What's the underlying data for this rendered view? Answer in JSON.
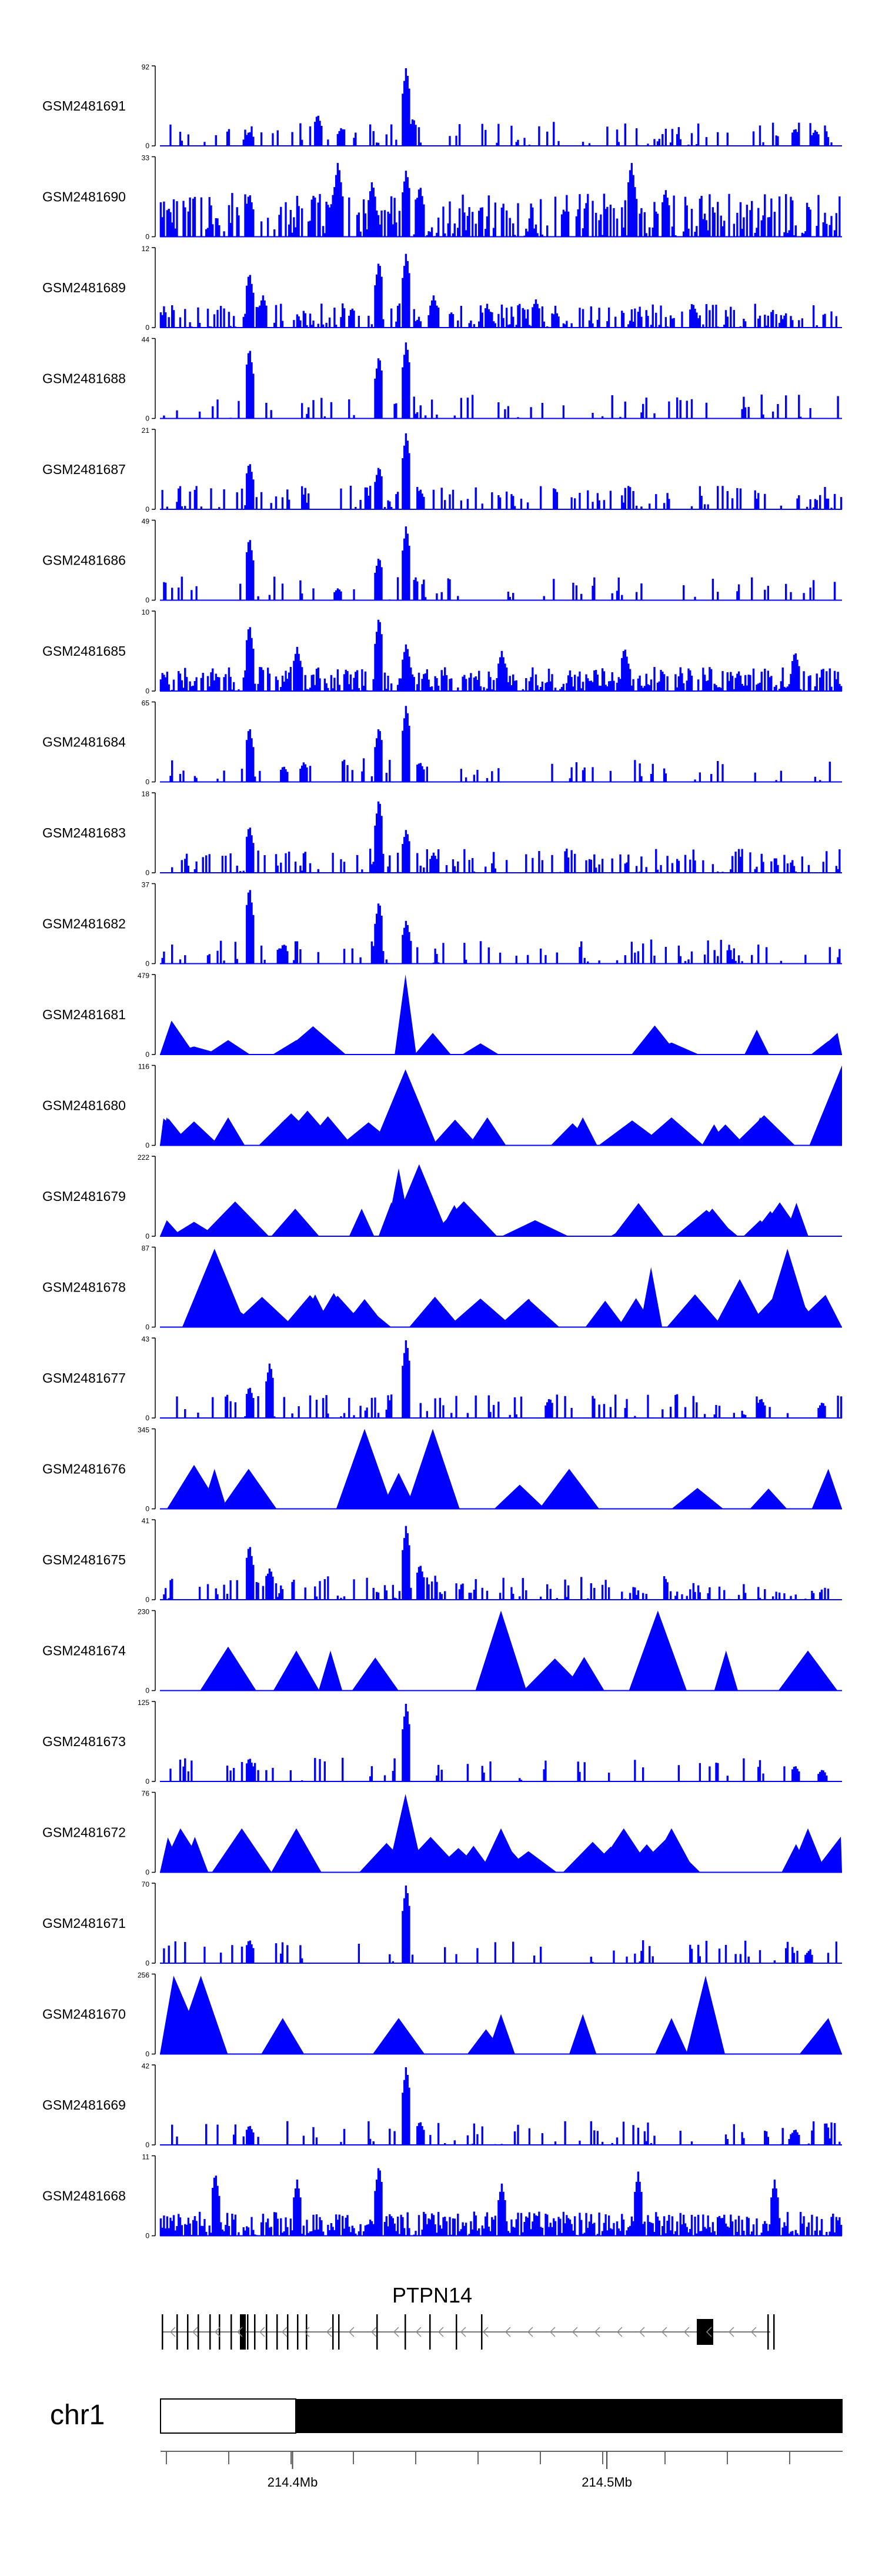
{
  "chart_data": {
    "type": "area",
    "title": "",
    "track_color": "#0000ff",
    "axis_color": "#000000",
    "tracks": [
      {
        "name": "GSM2481691",
        "ymax": "92",
        "ymin": "0",
        "style": "dense",
        "density": 0.25,
        "peaks": [
          [
            0.13,
            0.18
          ],
          [
            0.23,
            0.4
          ],
          [
            0.265,
            0.23
          ],
          [
            0.36,
            1.0
          ],
          [
            0.37,
            0.35
          ],
          [
            0.93,
            0.22
          ],
          [
            0.96,
            0.2
          ]
        ]
      },
      {
        "name": "GSM2481690",
        "ymax": "33",
        "ymin": "0",
        "style": "spiky",
        "density": 0.6,
        "peaks": [
          [
            0.13,
            0.55
          ],
          [
            0.26,
            0.95
          ],
          [
            0.31,
            0.7
          ],
          [
            0.36,
            0.85
          ],
          [
            0.38,
            0.65
          ],
          [
            0.69,
            0.95
          ],
          [
            0.74,
            0.6
          ]
        ]
      },
      {
        "name": "GSM2481689",
        "ymax": "12",
        "ymin": "0",
        "style": "dense",
        "density": 0.5,
        "peaks": [
          [
            0.13,
            0.7
          ],
          [
            0.32,
            0.85
          ],
          [
            0.36,
            0.95
          ],
          [
            0.15,
            0.4
          ],
          [
            0.4,
            0.4
          ],
          [
            0.55,
            0.35
          ],
          [
            0.78,
            0.3
          ]
        ]
      },
      {
        "name": "GSM2481688",
        "ymax": "44",
        "ymin": "0",
        "style": "dense",
        "density": 0.15,
        "peaks": [
          [
            0.13,
            0.9
          ],
          [
            0.32,
            0.8
          ],
          [
            0.36,
            0.98
          ]
        ]
      },
      {
        "name": "GSM2481687",
        "ymax": "21",
        "ymin": "0",
        "style": "dense",
        "density": 0.3,
        "peaks": [
          [
            0.13,
            0.6
          ],
          [
            0.32,
            0.55
          ],
          [
            0.36,
            0.98
          ],
          [
            0.38,
            0.25
          ]
        ]
      },
      {
        "name": "GSM2481686",
        "ymax": "49",
        "ymin": "0",
        "style": "dense",
        "density": 0.15,
        "peaks": [
          [
            0.13,
            0.8
          ],
          [
            0.26,
            0.15
          ],
          [
            0.32,
            0.55
          ],
          [
            0.36,
            0.95
          ]
        ]
      },
      {
        "name": "GSM2481685",
        "ymax": "10",
        "ymin": "0",
        "style": "dense",
        "density": 0.8,
        "peaks": [
          [
            0.13,
            0.85
          ],
          [
            0.2,
            0.55
          ],
          [
            0.32,
            0.95
          ],
          [
            0.36,
            0.6
          ],
          [
            0.5,
            0.5
          ],
          [
            0.68,
            0.55
          ],
          [
            0.93,
            0.5
          ]
        ]
      },
      {
        "name": "GSM2481684",
        "ymax": "65",
        "ymin": "0",
        "style": "dense",
        "density": 0.12,
        "peaks": [
          [
            0.13,
            0.7
          ],
          [
            0.18,
            0.2
          ],
          [
            0.21,
            0.25
          ],
          [
            0.32,
            0.7
          ],
          [
            0.36,
            0.98
          ],
          [
            0.38,
            0.25
          ]
        ]
      },
      {
        "name": "GSM2481683",
        "ymax": "18",
        "ymin": "0",
        "style": "dense",
        "density": 0.35,
        "peaks": [
          [
            0.13,
            0.6
          ],
          [
            0.32,
            0.95
          ],
          [
            0.36,
            0.55
          ],
          [
            0.4,
            0.25
          ]
        ]
      },
      {
        "name": "GSM2481682",
        "ymax": "37",
        "ymin": "0",
        "style": "dense",
        "density": 0.2,
        "peaks": [
          [
            0.13,
            0.98
          ],
          [
            0.18,
            0.25
          ],
          [
            0.32,
            0.8
          ],
          [
            0.36,
            0.55
          ]
        ]
      },
      {
        "name": "GSM2481681",
        "ymax": "479",
        "ymin": "0",
        "style": "triangles",
        "density": 0.2,
        "peaks": [
          [
            0.05,
            0.1
          ],
          [
            0.1,
            0.18
          ],
          [
            0.2,
            0.18
          ],
          [
            0.24,
            0.14
          ],
          [
            0.36,
            1.0
          ],
          [
            0.4,
            0.27
          ],
          [
            0.47,
            0.14
          ],
          [
            0.75,
            0.15
          ],
          [
            0.98,
            0.17
          ]
        ]
      },
      {
        "name": "GSM2481680",
        "ymax": "116",
        "ymin": "0",
        "style": "triangles",
        "density": 0.45,
        "peaks": [
          [
            0.01,
            0.35
          ],
          [
            0.05,
            0.3
          ],
          [
            0.1,
            0.35
          ],
          [
            0.18,
            0.3
          ],
          [
            0.36,
            0.95
          ],
          [
            0.48,
            0.35
          ],
          [
            0.62,
            0.35
          ],
          [
            0.75,
            0.35
          ],
          [
            0.88,
            0.35
          ],
          [
            1.0,
            1.0
          ]
        ]
      },
      {
        "name": "GSM2481679",
        "ymax": "222",
        "ymin": "0",
        "style": "triangles",
        "density": 0.5,
        "peaks": [
          [
            0.01,
            0.2
          ],
          [
            0.05,
            0.18
          ],
          [
            0.1,
            0.2
          ],
          [
            0.2,
            0.2
          ],
          [
            0.35,
            0.85
          ],
          [
            0.38,
            0.9
          ],
          [
            0.55,
            0.2
          ],
          [
            0.7,
            0.2
          ],
          [
            0.88,
            0.2
          ]
        ]
      },
      {
        "name": "GSM2481678",
        "ymax": "87",
        "ymin": "0",
        "style": "triangles",
        "density": 0.6,
        "peaks": [
          [
            0.08,
            0.98
          ],
          [
            0.15,
            0.35
          ],
          [
            0.22,
            0.4
          ],
          [
            0.3,
            0.35
          ],
          [
            0.4,
            0.35
          ],
          [
            0.54,
            0.35
          ],
          [
            0.72,
            0.75
          ],
          [
            0.85,
            0.6
          ],
          [
            0.92,
            0.98
          ]
        ]
      },
      {
        "name": "GSM2481677",
        "ymax": "43",
        "ymin": "0",
        "style": "dense",
        "density": 0.2,
        "peaks": [
          [
            0.13,
            0.4
          ],
          [
            0.16,
            0.7
          ],
          [
            0.36,
            1.0
          ],
          [
            0.57,
            0.25
          ],
          [
            0.88,
            0.25
          ],
          [
            0.97,
            0.2
          ]
        ]
      },
      {
        "name": "GSM2481676",
        "ymax": "345",
        "ymin": "0",
        "style": "triangles",
        "density": 0.1,
        "peaks": [
          [
            0.05,
            0.55
          ],
          [
            0.08,
            0.5
          ],
          [
            0.13,
            0.5
          ],
          [
            0.3,
            1.0
          ],
          [
            0.35,
            0.45
          ],
          [
            0.4,
            1.0
          ],
          [
            0.6,
            0.5
          ],
          [
            0.98,
            0.5
          ]
        ]
      },
      {
        "name": "GSM2481675",
        "ymax": "41",
        "ymin": "0",
        "style": "dense",
        "density": 0.3,
        "peaks": [
          [
            0.13,
            0.7
          ],
          [
            0.16,
            0.4
          ],
          [
            0.36,
            0.95
          ],
          [
            0.38,
            0.45
          ]
        ]
      },
      {
        "name": "GSM2481674",
        "ymax": "230",
        "ymin": "0",
        "style": "triangles",
        "density": 0.1,
        "peaks": [
          [
            0.1,
            0.55
          ],
          [
            0.2,
            0.5
          ],
          [
            0.25,
            0.5
          ],
          [
            0.5,
            1.0
          ],
          [
            0.73,
            1.0
          ],
          [
            0.83,
            0.5
          ],
          [
            0.95,
            0.5
          ]
        ]
      },
      {
        "name": "GSM2481673",
        "ymax": "125",
        "ymin": "0",
        "style": "dense",
        "density": 0.15,
        "peaks": [
          [
            0.13,
            0.3
          ],
          [
            0.36,
            1.0
          ],
          [
            0.93,
            0.2
          ],
          [
            0.97,
            0.15
          ]
        ]
      },
      {
        "name": "GSM2481672",
        "ymax": "76",
        "ymin": "0",
        "style": "triangles",
        "density": 0.5,
        "peaks": [
          [
            0.03,
            0.55
          ],
          [
            0.12,
            0.55
          ],
          [
            0.2,
            0.55
          ],
          [
            0.36,
            0.98
          ],
          [
            0.5,
            0.55
          ],
          [
            0.68,
            0.55
          ],
          [
            0.75,
            0.55
          ],
          [
            0.95,
            0.55
          ]
        ]
      },
      {
        "name": "GSM2481671",
        "ymax": "70",
        "ymin": "0",
        "style": "dense",
        "density": 0.15,
        "peaks": [
          [
            0.13,
            0.3
          ],
          [
            0.36,
            1.0
          ],
          [
            0.95,
            0.15
          ]
        ]
      },
      {
        "name": "GSM2481670",
        "ymax": "256",
        "ymin": "0",
        "style": "triangles",
        "density": 0.1,
        "peaks": [
          [
            0.02,
            0.98
          ],
          [
            0.06,
            0.98
          ],
          [
            0.18,
            0.45
          ],
          [
            0.35,
            0.45
          ],
          [
            0.5,
            0.5
          ],
          [
            0.62,
            0.5
          ],
          [
            0.75,
            0.45
          ],
          [
            0.8,
            0.98
          ],
          [
            0.98,
            0.45
          ]
        ]
      },
      {
        "name": "GSM2481669",
        "ymax": "42",
        "ymin": "0",
        "style": "dense",
        "density": 0.2,
        "peaks": [
          [
            0.13,
            0.25
          ],
          [
            0.36,
            1.0
          ],
          [
            0.38,
            0.3
          ],
          [
            0.93,
            0.2
          ]
        ]
      },
      {
        "name": "GSM2481668",
        "ymax": "11",
        "ymin": "0",
        "style": "dense",
        "density": 0.9,
        "peaks": [
          [
            0.08,
            0.8
          ],
          [
            0.2,
            0.7
          ],
          [
            0.32,
            0.9
          ],
          [
            0.5,
            0.65
          ],
          [
            0.7,
            0.8
          ],
          [
            0.9,
            0.7
          ]
        ]
      }
    ],
    "gene": {
      "name": "PTPN14",
      "strand": "-"
    },
    "chromosome": {
      "name": "chr1",
      "ticks": [
        {
          "label": "214.4Mb",
          "value": 214.4
        },
        {
          "label": "214.5Mb",
          "value": 214.5
        }
      ],
      "range": [
        214.358,
        214.575
      ]
    }
  }
}
